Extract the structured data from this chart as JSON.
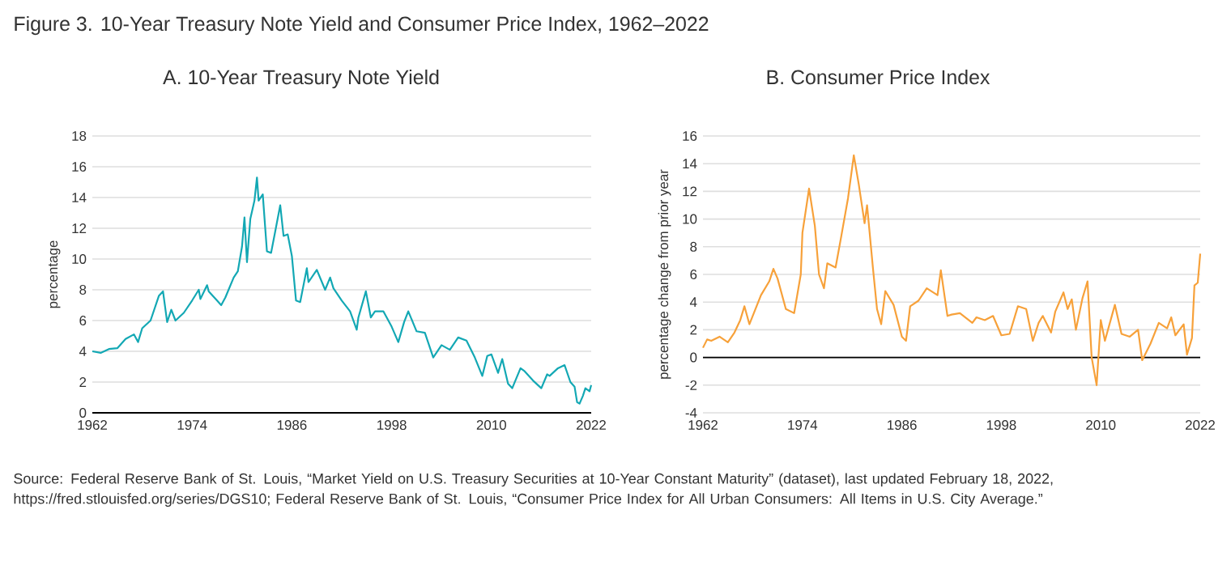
{
  "chart_data": [
    {
      "type": "line",
      "title": "Figure 3. 10-Year Treasury Note Yield and Consumer Price Index, 1962–2022",
      "subtitle": "A. 10-Year Treasury Note Yield",
      "ylabel": "percentage",
      "xlim": [
        1962,
        2022
      ],
      "xticks": [
        1962,
        1974,
        1986,
        1998,
        2010,
        2022
      ],
      "ylim": [
        0,
        18
      ],
      "yticks": [
        0,
        2,
        4,
        6,
        8,
        10,
        12,
        14,
        16,
        18
      ],
      "grid": "y",
      "series": [
        {
          "color": "#13a8b4",
          "x": [
            1962,
            1963,
            1964,
            1965,
            1966,
            1967,
            1967.5,
            1968,
            1969,
            1970,
            1970.5,
            1971,
            1971.5,
            1972,
            1973,
            1974,
            1974.8,
            1975,
            1975.8,
            1976,
            1977,
            1977.5,
            1978,
            1979,
            1979.5,
            1980,
            1980.3,
            1980.6,
            1981,
            1981.5,
            1981.8,
            1982,
            1982.5,
            1983,
            1983.5,
            1984,
            1984.6,
            1985,
            1985.5,
            1986,
            1986.5,
            1987,
            1987.8,
            1988,
            1989,
            1990,
            1990.6,
            1991,
            1992,
            1993,
            1993.8,
            1994,
            1994.9,
            1995.5,
            1996,
            1997,
            1998,
            1998.8,
            1999.5,
            2000,
            2001,
            2002,
            2003,
            2004,
            2005,
            2006,
            2007,
            2008,
            2008.9,
            2009.5,
            2010,
            2010.8,
            2011.3,
            2012,
            2012.5,
            2013.5,
            2014,
            2015,
            2016,
            2016.7,
            2017,
            2018,
            2018.8,
            2019.5,
            2020,
            2020.3,
            2020.6,
            2021,
            2021.3,
            2021.8,
            2022
          ],
          "values": [
            4.0,
            3.9,
            4.15,
            4.2,
            4.8,
            5.1,
            4.6,
            5.5,
            6.0,
            7.6,
            7.9,
            5.9,
            6.7,
            6.0,
            6.5,
            7.3,
            8.0,
            7.4,
            8.3,
            7.9,
            7.3,
            7.0,
            7.5,
            8.8,
            9.2,
            10.8,
            12.7,
            9.8,
            12.6,
            13.8,
            15.3,
            13.8,
            14.2,
            10.5,
            10.4,
            11.8,
            13.5,
            11.5,
            11.6,
            10.2,
            7.3,
            7.2,
            9.4,
            8.5,
            9.3,
            8.0,
            8.8,
            8.1,
            7.3,
            6.6,
            5.4,
            6.2,
            7.9,
            6.2,
            6.6,
            6.6,
            5.6,
            4.6,
            5.9,
            6.6,
            5.3,
            5.2,
            3.6,
            4.4,
            4.1,
            4.9,
            4.7,
            3.6,
            2.4,
            3.7,
            3.8,
            2.6,
            3.5,
            1.9,
            1.6,
            2.9,
            2.7,
            2.1,
            1.6,
            2.5,
            2.4,
            2.9,
            3.1,
            2.0,
            1.7,
            0.7,
            0.6,
            1.1,
            1.6,
            1.4,
            1.8
          ]
        }
      ]
    },
    {
      "type": "line",
      "subtitle": "B. Consumer Price Index",
      "ylabel": "percentage change from prior year",
      "xlim": [
        1962,
        2022
      ],
      "xticks": [
        1962,
        1974,
        1986,
        1998,
        2010,
        2022
      ],
      "ylim": [
        -4,
        16
      ],
      "yticks": [
        -4,
        -2,
        0,
        2,
        4,
        6,
        8,
        10,
        12,
        14,
        16
      ],
      "grid": "y",
      "ref_lines": [
        {
          "axis": "y",
          "value": 0,
          "color": "#000000"
        }
      ],
      "annotations": [
        "Source: Federal Reserve Bank of St. Louis, “Market Yield on U.S. Treasury Securities at 10-Year Constant Maturity” (dataset), last updated February 18, 2022, https://fred.stlouisfed.org/series/DGS10; Federal Reserve Bank of St. Louis, “Consumer Price Index for All Urban Consumers: All Items in U.S. City Average.”"
      ],
      "series": [
        {
          "color": "#f7a13a",
          "x": [
            1962,
            1962.5,
            1963,
            1964,
            1965,
            1965.8,
            1966.5,
            1967,
            1967.6,
            1968,
            1969,
            1970,
            1970.5,
            1971,
            1972,
            1973,
            1973.8,
            1974,
            1974.8,
            1975.5,
            1976,
            1976.6,
            1977,
            1978,
            1978.7,
            1979.5,
            1980.2,
            1980.8,
            1981.5,
            1981.8,
            1982.5,
            1983,
            1983.5,
            1984,
            1985,
            1986,
            1986.5,
            1987,
            1988,
            1989,
            1990.3,
            1990.7,
            1991.5,
            1992,
            1993,
            1994.5,
            1995,
            1996,
            1997,
            1998,
            1999,
            2000,
            2001,
            2001.8,
            2002.5,
            2003,
            2004,
            2004.5,
            2005.5,
            2006,
            2006.5,
            2007,
            2007.8,
            2008.4,
            2008.9,
            2009.5,
            2010,
            2010.5,
            2011.7,
            2012.5,
            2013.5,
            2014.5,
            2015,
            2016,
            2017,
            2018,
            2018.5,
            2019,
            2020,
            2020.4,
            2021,
            2021.3,
            2021.7,
            2022
          ],
          "values": [
            0.7,
            1.3,
            1.2,
            1.5,
            1.1,
            1.8,
            2.7,
            3.7,
            2.4,
            3.0,
            4.5,
            5.5,
            6.4,
            5.7,
            3.5,
            3.2,
            6.0,
            9.0,
            12.2,
            9.5,
            6.0,
            5.0,
            6.8,
            6.5,
            8.8,
            11.5,
            14.6,
            12.5,
            9.7,
            11.0,
            6.5,
            3.5,
            2.4,
            4.8,
            3.8,
            1.5,
            1.2,
            3.7,
            4.1,
            5.0,
            4.5,
            6.3,
            3.0,
            3.1,
            3.2,
            2.5,
            2.9,
            2.7,
            3.0,
            1.6,
            1.7,
            3.7,
            3.5,
            1.2,
            2.5,
            3.0,
            1.8,
            3.3,
            4.7,
            3.5,
            4.2,
            2.0,
            4.3,
            5.5,
            0.0,
            -2.0,
            2.7,
            1.2,
            3.8,
            1.7,
            1.5,
            2.0,
            -0.2,
            1.0,
            2.5,
            2.1,
            2.9,
            1.6,
            2.4,
            0.2,
            1.4,
            5.2,
            5.4,
            7.5
          ]
        }
      ]
    }
  ]
}
